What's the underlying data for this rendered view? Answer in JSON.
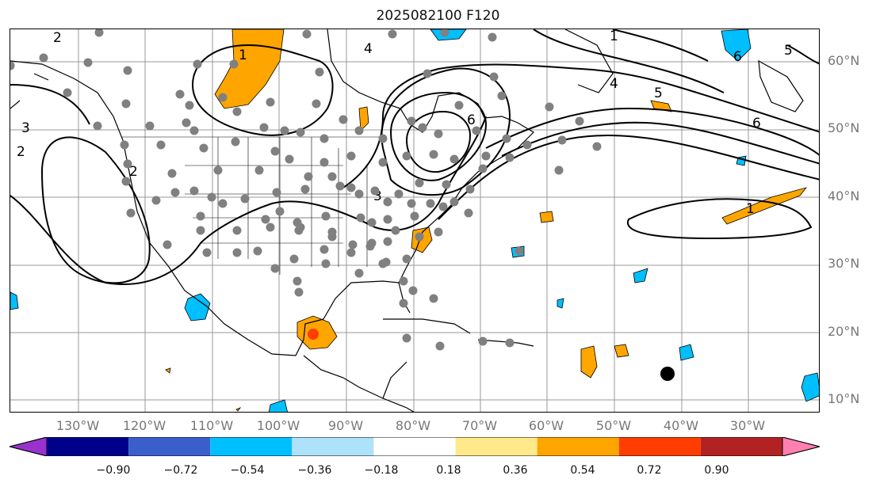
{
  "title": "2025082100 F120",
  "lat_labels": [
    "60°N",
    "50°N",
    "40°N",
    "30°N",
    "20°N",
    "10°N"
  ],
  "lon_labels": [
    "130°W",
    "120°W",
    "110°W",
    "100°W",
    "90°W",
    "80°W",
    "70°W",
    "60°W",
    "50°W",
    "40°W",
    "30°W"
  ],
  "contour_labels": [
    "1",
    "2",
    "3",
    "4",
    "4",
    "5",
    "6",
    "6",
    "6",
    "2",
    "3",
    "2",
    "5",
    "1",
    "1"
  ],
  "colorbar": {
    "ticks": [
      "−0.90",
      "−0.72",
      "−0.54",
      "−0.36",
      "−0.18",
      "0.18",
      "0.36",
      "0.54",
      "0.72",
      "0.90"
    ],
    "colors": [
      "#9932cc",
      "#00008b",
      "#3a5fcd",
      "#00bfff",
      "#aee2fb",
      "#ffffff",
      "#ffe98a",
      "#ffa500",
      "#ff3d00",
      "#b22222",
      "#ff80b0"
    ]
  }
}
